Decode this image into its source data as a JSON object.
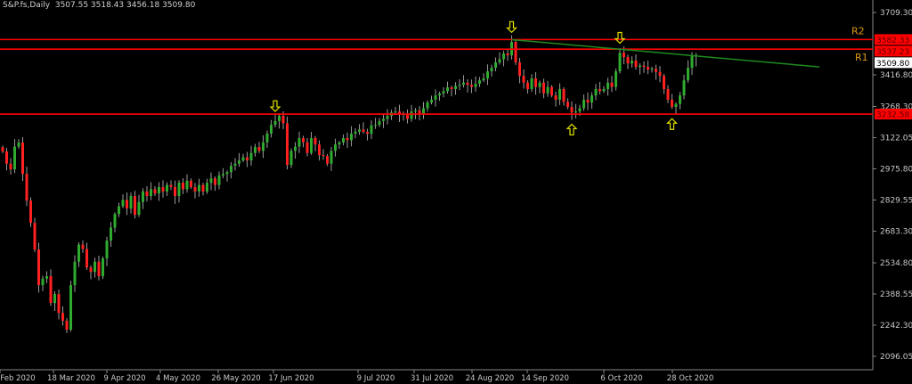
{
  "header": {
    "symbol": "S&P.fs,Daily",
    "ohlc": "3507.55 3518.43 3456.18 3509.80"
  },
  "colors": {
    "background": "#000000",
    "bull": "#2eab2e",
    "bear": "#ff2020",
    "wick": "#9a9a9a",
    "level_line": "#ff0000",
    "trendline": "#1f8a1f",
    "arrow": "#e0e000",
    "level_label": "#e09a10",
    "axis_text": "#c8c8c8"
  },
  "chart_data": {
    "type": "candlestick",
    "title": "S&P.fs,Daily",
    "ylim": [
      2060,
      3780
    ],
    "y_ticks": [
      "3709.30",
      "3416.80",
      "3268.30",
      "3122.05",
      "2975.80",
      "2829.55",
      "2683.30",
      "2534.80",
      "2388.55",
      "2242.30",
      "2096.05"
    ],
    "x_ticks": [
      "Feb 2020",
      "18 Mar 2020",
      "9 Apr 2020",
      "4 May 2020",
      "26 May 2020",
      "17 Jun 2020",
      "9 Jul 2020",
      "31 Jul 2020",
      "24 Aug 2020",
      "14 Sep 2020",
      "6 Oct 2020",
      "28 Oct 2020"
    ],
    "closes": [
      3057,
      3000,
      2973,
      3080,
      3099,
      2952,
      2827,
      2722,
      2597,
      2430,
      2460,
      2472,
      2346,
      2388,
      2300,
      2263,
      2221,
      2430,
      2540,
      2620,
      2600,
      2513,
      2492,
      2540,
      2472,
      2555,
      2639,
      2700,
      2764,
      2800,
      2830,
      2790,
      2848,
      2760,
      2820,
      2870,
      2848,
      2880,
      2860,
      2890,
      2869,
      2900,
      2890,
      2848,
      2911,
      2880,
      2920,
      2890,
      2870,
      2900,
      2869,
      2910,
      2931,
      2900,
      2945,
      2952,
      2960,
      2990,
      3000,
      3015,
      3030,
      3015,
      3050,
      3078,
      3060,
      3100,
      3141,
      3182,
      3200,
      3224,
      3190,
      2994,
      3060,
      3080,
      3120,
      3100,
      3050,
      3120,
      3090,
      3040,
      3036,
      3000,
      3060,
      3090,
      3099,
      3120,
      3110,
      3141,
      3150,
      3160,
      3149,
      3140,
      3180,
      3182,
      3200,
      3210,
      3224,
      3240,
      3245,
      3230,
      3233,
      3210,
      3245,
      3250,
      3233,
      3260,
      3287,
      3300,
      3320,
      3329,
      3340,
      3358,
      3350,
      3365,
      3370,
      3380,
      3370,
      3360,
      3375,
      3391,
      3400,
      3433,
      3450,
      3475,
      3490,
      3517,
      3508,
      3571,
      3475,
      3412,
      3380,
      3350,
      3400,
      3360,
      3380,
      3330,
      3360,
      3320,
      3300,
      3350,
      3290,
      3266,
      3240,
      3245,
      3260,
      3300,
      3287,
      3320,
      3350,
      3340,
      3350,
      3380,
      3360,
      3433,
      3520,
      3500,
      3470,
      3483,
      3454,
      3460,
      3454,
      3441,
      3445,
      3430,
      3412,
      3350,
      3300,
      3266,
      3280,
      3320,
      3391,
      3450,
      3507.55,
      3509.8
    ],
    "last_bar": {
      "open": 3507.55,
      "high": 3518.43,
      "low": 3456.18,
      "close": 3509.8
    },
    "levels": [
      {
        "name": "R2",
        "price": 3582.33,
        "price_label": "3582.33"
      },
      {
        "name": "R1",
        "price": 3537.23,
        "price_label": "3537.23"
      },
      {
        "name": "",
        "price": 3232.58,
        "price_label": "3232.58"
      }
    ],
    "current_price_label": "3509.80",
    "trendline": {
      "from_bar": 127,
      "from_price": 3582,
      "to_bar_offset_end": true,
      "to_price": 3454
    },
    "arrows": [
      {
        "bar": 68,
        "dir": "down"
      },
      {
        "bar": 127,
        "dir": "down"
      },
      {
        "bar": 154,
        "dir": "down"
      },
      {
        "bar": 142,
        "dir": "up"
      },
      {
        "bar": 167,
        "dir": "up"
      }
    ]
  }
}
